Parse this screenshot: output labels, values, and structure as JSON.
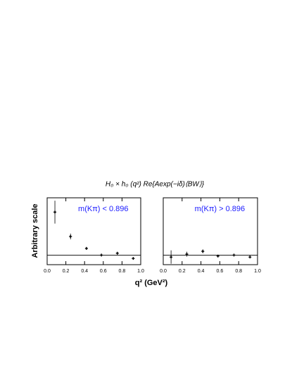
{
  "title": "H₀ × h₀ (q²) Re{Aexp(−iδ)⟨BW⟩}",
  "y_label": "Arbitrary scale",
  "x_label": "q² (GeV²)",
  "chart_data": [
    {
      "type": "errorbar",
      "annotation": "m(Kπ) < 0.896",
      "annotation_color": "#1a1aff",
      "color": "#000000",
      "x": [
        0.083,
        0.25,
        0.42,
        0.58,
        0.75,
        0.92
      ],
      "values": [
        0.9,
        0.39,
        0.14,
        0.0,
        0.04,
        -0.07
      ],
      "errors": [
        0.24,
        0.06,
        0.03,
        0.02,
        0.02,
        0.02
      ],
      "xlim": [
        0,
        1
      ],
      "ylim": [
        -0.2,
        1.2
      ],
      "reference_line": 0,
      "xticks": [
        {
          "value": 0,
          "label": "0.0"
        },
        0.2,
        0.4,
        0.6,
        0.8,
        {
          "value": 1,
          "label": "1.0"
        }
      ]
    },
    {
      "type": "errorbar",
      "annotation": "m(Kπ) > 0.896",
      "annotation_color": "#1a1aff",
      "color": "#000000",
      "x": [
        0.083,
        0.25,
        0.42,
        0.58,
        0.75,
        0.92
      ],
      "values": [
        -0.04,
        0.02,
        0.08,
        -0.02,
        0.0,
        -0.04
      ],
      "errors": [
        0.14,
        0.05,
        0.04,
        0.02,
        0.02,
        0.02
      ],
      "xlim": [
        0,
        1
      ],
      "ylim": [
        -0.2,
        1.2
      ],
      "reference_line": 0,
      "xticks": [
        {
          "value": 0,
          "label": "0.0"
        },
        0.2,
        0.4,
        0.6,
        0.8,
        {
          "value": 1,
          "label": "1.0"
        }
      ]
    }
  ]
}
